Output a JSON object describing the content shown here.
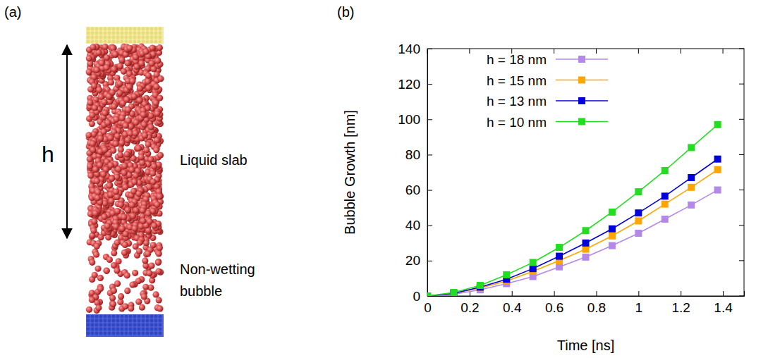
{
  "diagram": {
    "panel_label": "(a)",
    "dimension_label": "h",
    "labels": [
      "Liquid slab",
      "Non-wetting bubble"
    ]
  },
  "chart_data": {
    "type": "line",
    "panel_label": "(b)",
    "x_label": "Time [ns]",
    "y_label": "Bubble Growth [nm]",
    "x": [
      0,
      0.125,
      0.25,
      0.375,
      0.5,
      0.625,
      0.75,
      0.875,
      1.0,
      1.125,
      1.25,
      1.375
    ],
    "series": [
      {
        "name": "h = 18 nm",
        "color": "#b388e8",
        "values": [
          0,
          1,
          3.5,
          7,
          11,
          16.5,
          22,
          28.5,
          35.5,
          43.5,
          51.5,
          60
        ]
      },
      {
        "name": "h = 15 nm",
        "color": "#ffa500",
        "values": [
          0,
          1.5,
          4.5,
          8.5,
          14,
          20,
          26.5,
          34,
          42.5,
          52,
          61.5,
          71.5
        ]
      },
      {
        "name": "h = 13 nm",
        "color": "#0000dd",
        "values": [
          0,
          1.5,
          5,
          9.5,
          15.5,
          22.5,
          30,
          38,
          47,
          56.5,
          67,
          77.5
        ]
      },
      {
        "name": "h = 10 nm",
        "color": "#22dd22",
        "values": [
          0,
          2,
          6,
          12,
          19,
          27.5,
          37,
          47.5,
          59,
          71,
          84,
          97
        ]
      }
    ],
    "xlim": [
      0,
      1.5
    ],
    "xticks": [
      0,
      0.2,
      0.4,
      0.6,
      0.8,
      1,
      1.2,
      1.4
    ],
    "ylim": [
      0,
      140
    ],
    "yticks": [
      0,
      20,
      40,
      60,
      80,
      100,
      120,
      140
    ],
    "marker": "square",
    "legend": "upper left",
    "grid": false
  }
}
